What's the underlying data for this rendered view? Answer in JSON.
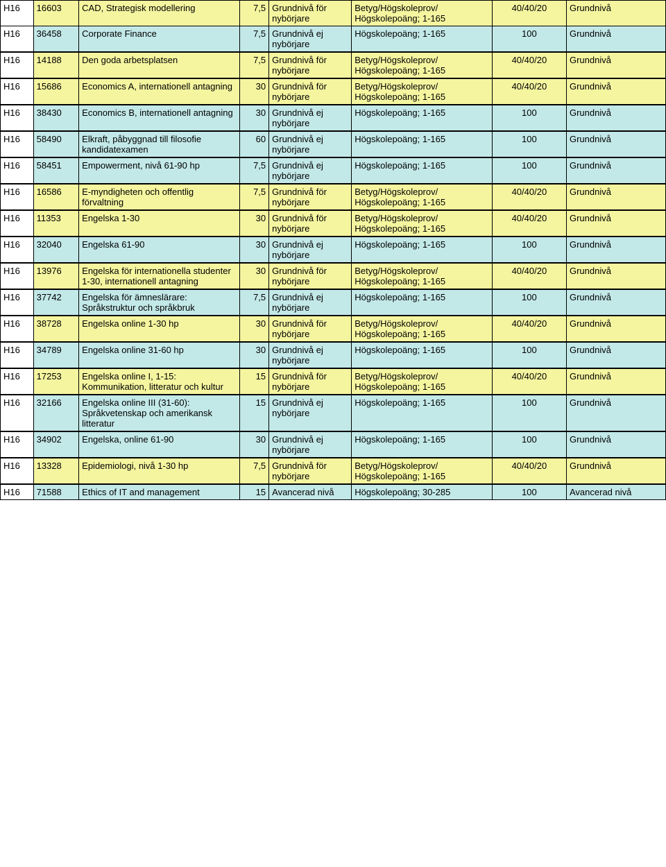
{
  "colors": {
    "yellow": "#f5f5a0",
    "blue": "#c3e8e8"
  },
  "groups": [
    {
      "rows": [
        {
          "c1": "H16",
          "c2": "16603",
          "c3": "CAD, Strategisk modellering",
          "c4": "7,5",
          "c5": "Grundnivå för nybörjare",
          "c6": "Betyg/Högskoleprov/ Högskolepoäng; 1-165",
          "c7": "40/40/20",
          "c8": "Grundnivå",
          "bg": "yellow"
        },
        {
          "c1": "H16",
          "c2": "36458",
          "c3": "Corporate Finance",
          "c4": "7,5",
          "c5": "Grundnivå ej nybörjare",
          "c6": "Högskolepoäng; 1-165",
          "c7": "100",
          "c8": "Grundnivå",
          "bg": "blue"
        }
      ]
    },
    {
      "rows": [
        {
          "c1": "H16",
          "c2": "14188",
          "c3": "Den goda arbetsplatsen",
          "c4": "7,5",
          "c5": "Grundnivå för nybörjare",
          "c6": "Betyg/Högskoleprov/ Högskolepoäng; 1-165",
          "c7": "40/40/20",
          "c8": "Grundnivå",
          "bg": "yellow"
        },
        {
          "c1": "H16",
          "c2": "15686",
          "c3": "Economics A, internationell antagning",
          "c4": "30",
          "c5": "Grundnivå för nybörjare",
          "c6": "Betyg/Högskoleprov/ Högskolepoäng; 1-165",
          "c7": "40/40/20",
          "c8": "Grundnivå",
          "bg": "yellow"
        },
        {
          "c1": "H16",
          "c2": "38430",
          "c3": "Economics B, internationell antagning",
          "c4": "30",
          "c5": "Grundnivå ej nybörjare",
          "c6": "Högskolepoäng; 1-165",
          "c7": "100",
          "c8": "Grundnivå",
          "bg": "blue"
        }
      ]
    },
    {
      "rows": [
        {
          "c1": "H16",
          "c2": "58490",
          "c3": "Elkraft, påbyggnad till filosofie kandidatexamen",
          "c4": "60",
          "c5": "Grundnivå ej nybörjare",
          "c6": "Högskolepoäng; 1-165",
          "c7": "100",
          "c8": "Grundnivå",
          "bg": "blue"
        }
      ]
    },
    {
      "rows": [
        {
          "c1": "H16",
          "c2": "58451",
          "c3": "Empowerment, nivå 61-90 hp",
          "c4": "7,5",
          "c5": "Grundnivå ej nybörjare",
          "c6": "Högskolepoäng; 1-165",
          "c7": "100",
          "c8": "Grundnivå",
          "bg": "blue"
        }
      ]
    },
    {
      "rows": [
        {
          "c1": "H16",
          "c2": "16586",
          "c3": "E-myndigheten och offentlig förvaltning",
          "c4": "7,5",
          "c5": "Grundnivå för nybörjare",
          "c6": "Betyg/Högskoleprov/ Högskolepoäng; 1-165",
          "c7": "40/40/20",
          "c8": "Grundnivå",
          "bg": "yellow"
        },
        {
          "c1": "H16",
          "c2": "11353",
          "c3": "Engelska 1-30",
          "c4": "30",
          "c5": "Grundnivå för nybörjare",
          "c6": "Betyg/Högskoleprov/ Högskolepoäng; 1-165",
          "c7": "40/40/20",
          "c8": "Grundnivå",
          "bg": "yellow"
        },
        {
          "c1": "H16",
          "c2": "32040",
          "c3": "Engelska 61-90",
          "c4": "30",
          "c5": "Grundnivå ej nybörjare",
          "c6": "Högskolepoäng; 1-165",
          "c7": "100",
          "c8": "Grundnivå",
          "bg": "blue"
        }
      ]
    },
    {
      "rows": [
        {
          "c1": "H16",
          "c2": "13976",
          "c3": "Engelska för internationella studenter 1-30, internationell antagning",
          "c4": "30",
          "c5": "Grundnivå för nybörjare",
          "c6": "Betyg/Högskoleprov/ Högskolepoäng; 1-165",
          "c7": "40/40/20",
          "c8": "Grundnivå",
          "bg": "yellow"
        },
        {
          "c1": "H16",
          "c2": "37742",
          "c3": "Engelska för ämneslärare: Språkstruktur och språkbruk",
          "c4": "7,5",
          "c5": "Grundnivå ej nybörjare",
          "c6": "Högskolepoäng; 1-165",
          "c7": "100",
          "c8": "Grundnivå",
          "bg": "blue"
        },
        {
          "c1": "H16",
          "c2": "38728",
          "c3": "Engelska online 1-30 hp",
          "c4": "30",
          "c5": "Grundnivå för nybörjare",
          "c6": "Betyg/Högskoleprov/ Högskolepoäng; 1-165",
          "c7": "40/40/20",
          "c8": "Grundnivå",
          "bg": "yellow"
        },
        {
          "c1": "H16",
          "c2": "34789",
          "c3": "Engelska online 31-60 hp",
          "c4": "30",
          "c5": "Grundnivå ej nybörjare",
          "c6": "Högskolepoäng; 1-165",
          "c7": "100",
          "c8": "Grundnivå",
          "bg": "blue"
        }
      ]
    },
    {
      "rows": [
        {
          "c1": "H16",
          "c2": "17253",
          "c3": "Engelska online I, 1-15: Kommunikation, litteratur och kultur",
          "c4": "15",
          "c5": "Grundnivå för nybörjare",
          "c6": "Betyg/Högskoleprov/ Högskolepoäng; 1-165",
          "c7": "40/40/20",
          "c8": "Grundnivå",
          "bg": "yellow"
        },
        {
          "c1": "H16",
          "c2": "32166",
          "c3": "Engelska online III (31-60): Språkvetenskap och amerikansk litteratur",
          "c4": "15",
          "c5": "Grundnivå ej nybörjare",
          "c6": "Högskolepoäng; 1-165",
          "c7": "100",
          "c8": "Grundnivå",
          "bg": "blue"
        }
      ]
    },
    {
      "rows": [
        {
          "c1": "H16",
          "c2": "34902",
          "c3": "Engelska, online 61-90",
          "c4": "30",
          "c5": "Grundnivå ej nybörjare",
          "c6": "Högskolepoäng; 1-165",
          "c7": "100",
          "c8": "Grundnivå",
          "bg": "blue"
        }
      ]
    },
    {
      "rows": [
        {
          "c1": "H16",
          "c2": "13328",
          "c3": "Epidemiologi, nivå 1-30 hp",
          "c4": "7,5",
          "c5": "Grundnivå för nybörjare",
          "c6": "Betyg/Högskoleprov/ Högskolepoäng; 1-165",
          "c7": "40/40/20",
          "c8": "Grundnivå",
          "bg": "yellow"
        },
        {
          "c1": "H16",
          "c2": "71588",
          "c3": "Ethics of IT and management",
          "c4": "15",
          "c5": "Avancerad nivå",
          "c6": "Högskolepoäng; 30-285",
          "c7": "100",
          "c8": "Avancerad nivå",
          "bg": "blue"
        }
      ]
    }
  ]
}
